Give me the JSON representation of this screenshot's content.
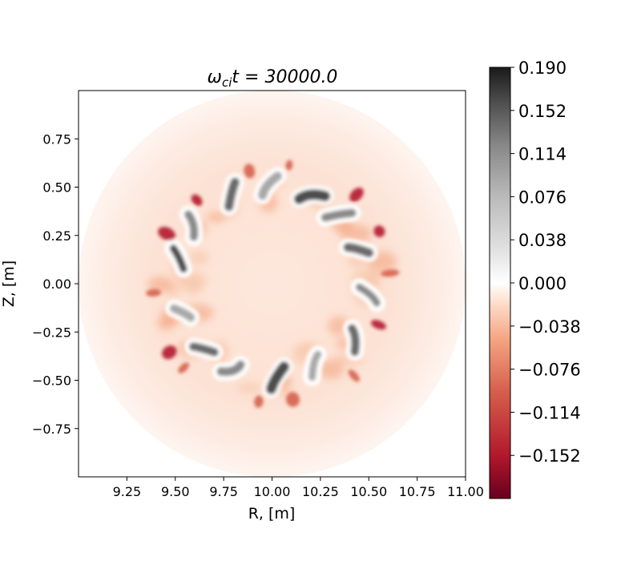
{
  "chart_data": {
    "type": "heatmap",
    "title": "ωcit = 30000.0",
    "title_parts": {
      "omega": "ω",
      "sub": "ci",
      "rest": "t = 30000.0"
    },
    "xlabel": "R, [m]",
    "ylabel": "Z, [m]",
    "xlim": [
      9.0,
      11.0
    ],
    "ylim": [
      -1.0,
      1.0
    ],
    "x_ticks": [
      "9.25",
      "9.50",
      "9.75",
      "10.00",
      "10.25",
      "10.50",
      "10.75",
      "11.00"
    ],
    "x_tick_values": [
      9.25,
      9.5,
      9.75,
      10.0,
      10.25,
      10.5,
      10.75,
      11.0
    ],
    "y_ticks": [
      "0.75",
      "0.50",
      "0.25",
      "0.00",
      "−0.25",
      "−0.50",
      "−0.75"
    ],
    "y_tick_values": [
      0.75,
      0.5,
      0.25,
      0.0,
      -0.25,
      -0.5,
      -0.75
    ],
    "domain": {
      "center_R": 10.0,
      "center_Z": 0.0,
      "radius": 1.0
    },
    "ring": {
      "inner_radius": 0.55,
      "outer_radius": 1.4,
      "num_eddies": 14
    },
    "colorbar": {
      "colormap": "RdGy_r",
      "range": [
        -0.19,
        0.19
      ],
      "ticks": [
        "0.190",
        "0.152",
        "0.114",
        "0.076",
        "0.038",
        "0.000",
        "−0.038",
        "−0.076",
        "−0.114",
        "−0.152"
      ],
      "tick_values": [
        0.19,
        0.152,
        0.114,
        0.076,
        0.038,
        0.0,
        -0.038,
        -0.076,
        -0.114,
        -0.152
      ],
      "colors": {
        "dark_red": "#67001f",
        "red": "#d6604d",
        "light_red": "#fddbc7",
        "white": "#ffffff",
        "light_gray": "#e0e0e0",
        "gray": "#878787",
        "dark_gray": "#1a1a1a"
      }
    }
  }
}
